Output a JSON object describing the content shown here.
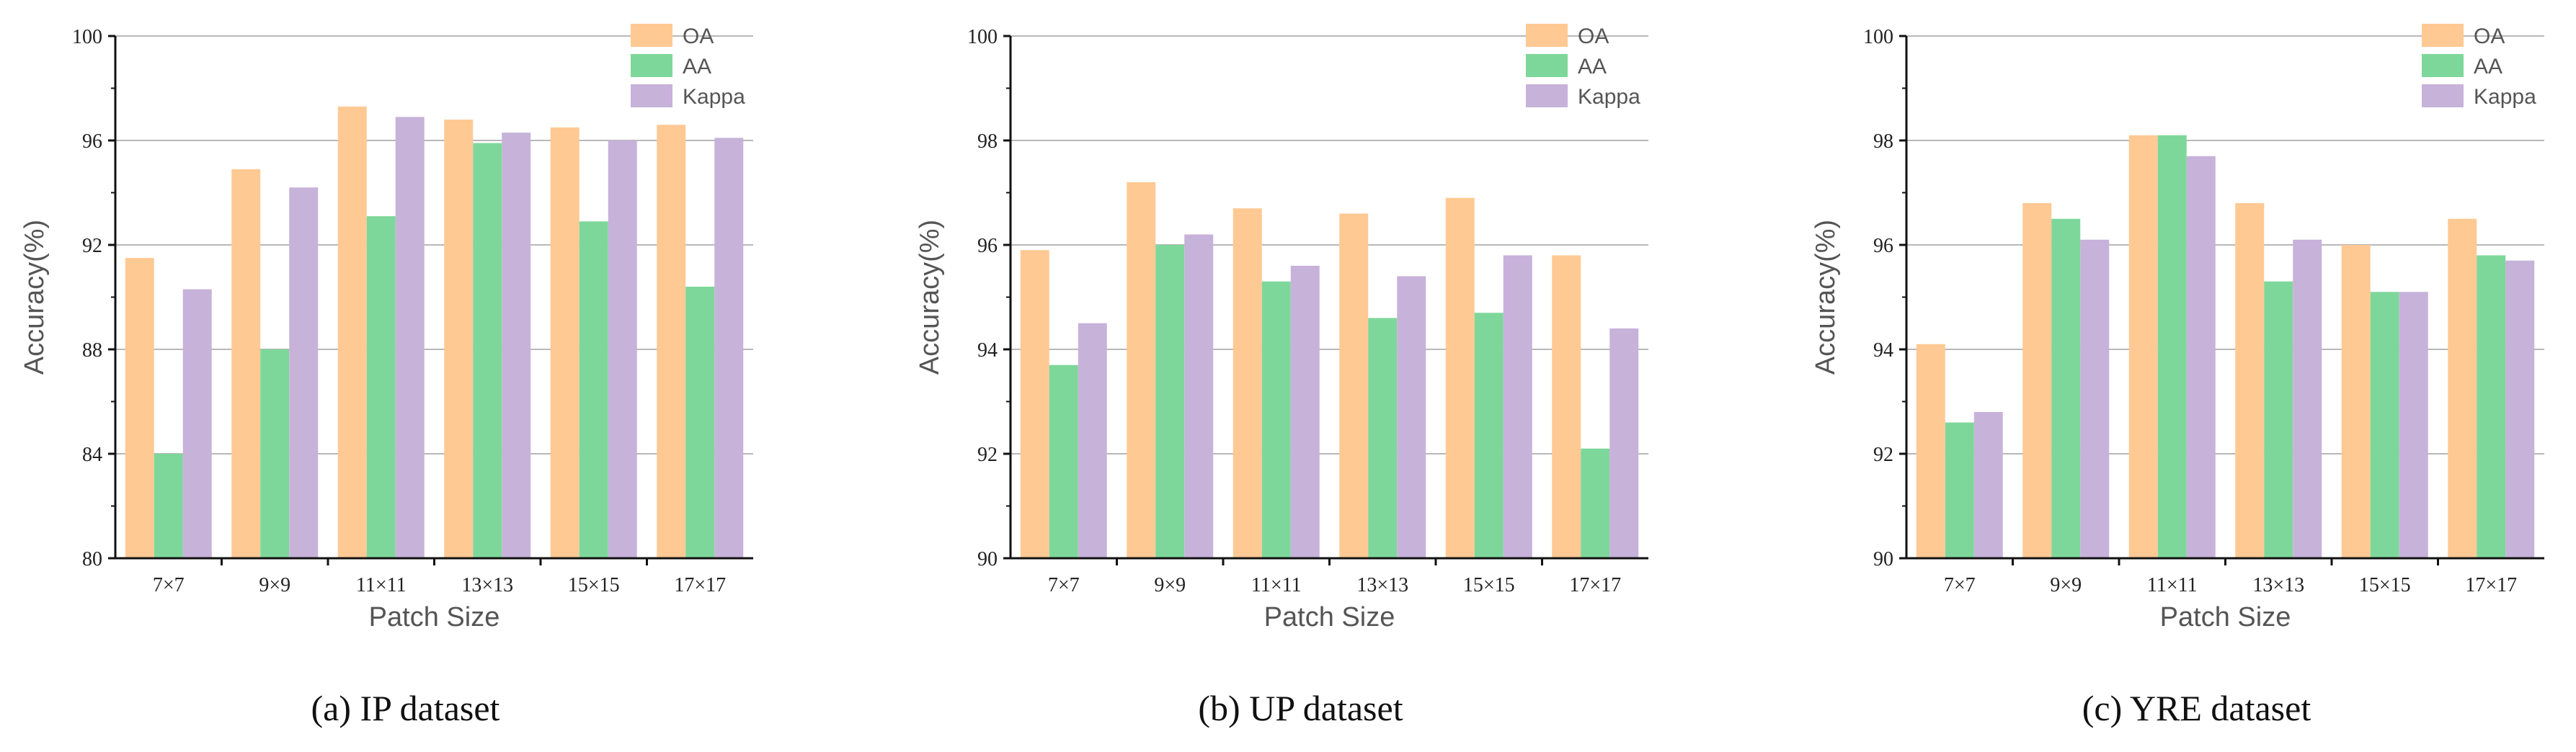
{
  "colors": {
    "OA": "#FFC993",
    "AA": "#7ED79A",
    "Kappa": "#C7B2DA",
    "grid": "#b8b8b8",
    "axis": "#111111"
  },
  "chart_data": [
    {
      "type": "bar",
      "caption": "(a) IP dataset",
      "xlabel": "Patch Size",
      "ylabel": "Accuracy(%)",
      "ylim": [
        80,
        100
      ],
      "yticks": [
        "80",
        "84",
        "88",
        "92",
        "96",
        "100"
      ],
      "categories": [
        "7×7",
        "9×9",
        "11×11",
        "13×13",
        "15×15",
        "17×17"
      ],
      "series": [
        {
          "name": "OA",
          "values": [
            91.5,
            94.9,
            97.3,
            96.8,
            96.5,
            96.6
          ]
        },
        {
          "name": "AA",
          "values": [
            84.0,
            88.0,
            93.1,
            95.9,
            92.9,
            90.4
          ]
        },
        {
          "name": "Kappa",
          "values": [
            90.3,
            94.2,
            96.9,
            96.3,
            96.0,
            96.1
          ]
        }
      ]
    },
    {
      "type": "bar",
      "caption": "(b) UP dataset",
      "xlabel": "Patch Size",
      "ylabel": "Accuracy(%)",
      "ylim": [
        90,
        100
      ],
      "yticks": [
        "90",
        "92",
        "94",
        "96",
        "98",
        "100"
      ],
      "categories": [
        "7×7",
        "9×9",
        "11×11",
        "13×13",
        "15×15",
        "17×17"
      ],
      "series": [
        {
          "name": "OA",
          "values": [
            95.9,
            97.2,
            96.7,
            96.6,
            96.9,
            95.8
          ]
        },
        {
          "name": "AA",
          "values": [
            93.7,
            96.0,
            95.3,
            94.6,
            94.7,
            92.1
          ]
        },
        {
          "name": "Kappa",
          "values": [
            94.5,
            96.2,
            95.6,
            95.4,
            95.8,
            94.4
          ]
        }
      ]
    },
    {
      "type": "bar",
      "caption": "(c) YRE dataset",
      "xlabel": "Patch Size",
      "ylabel": "Accuracy(%)",
      "ylim": [
        90,
        100
      ],
      "yticks": [
        "90",
        "92",
        "94",
        "96",
        "98",
        "100"
      ],
      "categories": [
        "7×7",
        "9×9",
        "11×11",
        "13×13",
        "15×15",
        "17×17"
      ],
      "series": [
        {
          "name": "OA",
          "values": [
            94.1,
            96.8,
            98.1,
            96.8,
            96.0,
            96.5
          ]
        },
        {
          "name": "AA",
          "values": [
            92.6,
            96.5,
            98.1,
            95.3,
            95.1,
            95.8
          ]
        },
        {
          "name": "Kappa",
          "values": [
            92.8,
            96.1,
            97.7,
            96.1,
            95.1,
            95.7
          ]
        }
      ]
    }
  ]
}
